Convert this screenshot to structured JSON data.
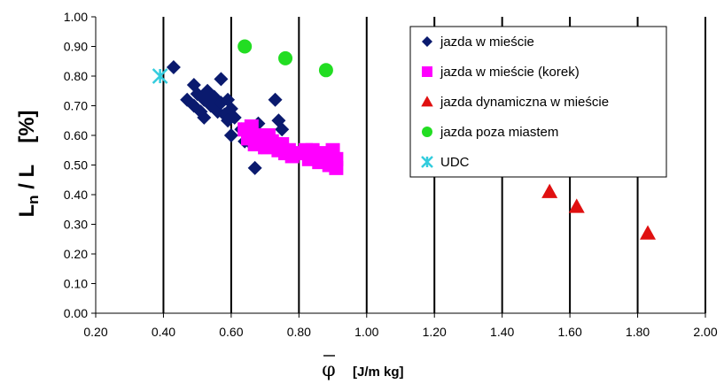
{
  "chart_data": {
    "type": "scatter",
    "title": "",
    "xlabel": {
      "symbol": "φ",
      "unit": "[J/m kg]"
    },
    "ylabel": {
      "main": "L",
      "sub": "n",
      "rest": " / L",
      "unit": "[%]"
    },
    "xlim": [
      0.2,
      2.0
    ],
    "ylim": [
      0.0,
      1.0
    ],
    "xticks": [
      0.2,
      0.4,
      0.6,
      0.8,
      1.0,
      1.2,
      1.4,
      1.6,
      1.8,
      2.0
    ],
    "yticks": [
      0.0,
      0.1,
      0.2,
      0.3,
      0.4,
      0.5,
      0.6,
      0.7,
      0.8,
      0.9,
      1.0
    ],
    "xtick_labels": [
      "0.20",
      "0.40",
      "0.60",
      "0.80",
      "1.00",
      "1.20",
      "1.40",
      "1.60",
      "1.80",
      "2.00"
    ],
    "ytick_labels": [
      "0.00",
      "0.10",
      "0.20",
      "0.30",
      "0.40",
      "0.50",
      "0.60",
      "0.70",
      "0.80",
      "0.90",
      "1.00"
    ],
    "grid": "vertical",
    "legend_position": "top-right",
    "series": [
      {
        "name": "jazda w mieście",
        "marker": "diamond",
        "color": "#0a1a6e",
        "points": [
          [
            0.43,
            0.83
          ],
          [
            0.47,
            0.72
          ],
          [
            0.49,
            0.77
          ],
          [
            0.49,
            0.7
          ],
          [
            0.5,
            0.74
          ],
          [
            0.51,
            0.68
          ],
          [
            0.52,
            0.72
          ],
          [
            0.52,
            0.66
          ],
          [
            0.53,
            0.75
          ],
          [
            0.54,
            0.7
          ],
          [
            0.55,
            0.73
          ],
          [
            0.56,
            0.68
          ],
          [
            0.57,
            0.79
          ],
          [
            0.57,
            0.71
          ],
          [
            0.58,
            0.67
          ],
          [
            0.59,
            0.72
          ],
          [
            0.59,
            0.65
          ],
          [
            0.6,
            0.69
          ],
          [
            0.6,
            0.6
          ],
          [
            0.61,
            0.66
          ],
          [
            0.63,
            0.62
          ],
          [
            0.64,
            0.58
          ],
          [
            0.65,
            0.61
          ],
          [
            0.66,
            0.57
          ],
          [
            0.67,
            0.49
          ],
          [
            0.68,
            0.64
          ],
          [
            0.69,
            0.56
          ],
          [
            0.7,
            0.6
          ],
          [
            0.72,
            0.58
          ],
          [
            0.73,
            0.72
          ],
          [
            0.74,
            0.65
          ],
          [
            0.75,
            0.62
          ]
        ]
      },
      {
        "name": "jazda w mieście (korek)",
        "marker": "square",
        "color": "#ff00ff",
        "points": [
          [
            0.64,
            0.62
          ],
          [
            0.65,
            0.59
          ],
          [
            0.66,
            0.63
          ],
          [
            0.67,
            0.57
          ],
          [
            0.68,
            0.6
          ],
          [
            0.69,
            0.58
          ],
          [
            0.7,
            0.56
          ],
          [
            0.71,
            0.6
          ],
          [
            0.72,
            0.58
          ],
          [
            0.73,
            0.57
          ],
          [
            0.74,
            0.55
          ],
          [
            0.75,
            0.57
          ],
          [
            0.76,
            0.54
          ],
          [
            0.77,
            0.55
          ],
          [
            0.78,
            0.53
          ],
          [
            0.8,
            0.54
          ],
          [
            0.82,
            0.55
          ],
          [
            0.83,
            0.52
          ],
          [
            0.84,
            0.55
          ],
          [
            0.85,
            0.53
          ],
          [
            0.86,
            0.51
          ],
          [
            0.87,
            0.54
          ],
          [
            0.88,
            0.52
          ],
          [
            0.89,
            0.5
          ],
          [
            0.9,
            0.55
          ],
          [
            0.91,
            0.52
          ],
          [
            0.91,
            0.49
          ]
        ]
      },
      {
        "name": "jazda dynamiczna w mieście",
        "marker": "triangle",
        "color": "#e01010",
        "points": [
          [
            1.54,
            0.41
          ],
          [
            1.62,
            0.36
          ],
          [
            1.83,
            0.27
          ]
        ]
      },
      {
        "name": "jazda poza miastem",
        "marker": "circle",
        "color": "#22dd22",
        "points": [
          [
            0.64,
            0.9
          ],
          [
            0.76,
            0.86
          ],
          [
            0.88,
            0.82
          ]
        ]
      },
      {
        "name": "UDC",
        "marker": "star",
        "color": "#33ccdd",
        "points": [
          [
            0.39,
            0.8
          ]
        ]
      }
    ]
  }
}
